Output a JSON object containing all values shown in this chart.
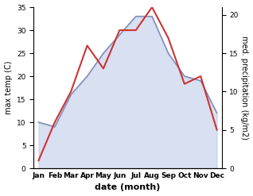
{
  "months": [
    "Jan",
    "Feb",
    "Mar",
    "Apr",
    "May",
    "Jun",
    "Jul",
    "Aug",
    "Sep",
    "Oct",
    "Nov",
    "Dec"
  ],
  "x": [
    0,
    1,
    2,
    3,
    4,
    5,
    6,
    7,
    8,
    9,
    10,
    11
  ],
  "temperature": [
    10,
    9,
    16,
    20,
    25,
    29,
    33,
    33,
    25,
    20,
    19,
    12
  ],
  "precipitation": [
    1.0,
    6.0,
    10.0,
    16.0,
    13.0,
    18.0,
    18.0,
    21.0,
    17.0,
    11.0,
    12.0,
    5.0
  ],
  "temp_fill_color": "#b8c8e8",
  "temp_line_color": "#8090b8",
  "precip_line_color": "#cc3333",
  "fill_alpha": 0.55,
  "temp_ylim": [
    0,
    35
  ],
  "precip_ylim": [
    0,
    21
  ],
  "ylabel_left": "max temp (C)",
  "ylabel_right": "med. precipitation (kg/m2)",
  "xlabel": "date (month)",
  "bg_color": "#ffffff",
  "temp_yticks": [
    0,
    5,
    10,
    15,
    20,
    25,
    30,
    35
  ],
  "precip_yticks": [
    0,
    5,
    10,
    15,
    20
  ],
  "xlim": [
    -0.3,
    11.3
  ],
  "temp_linewidth": 1.2,
  "precip_linewidth": 1.5,
  "ylabel_fontsize": 7,
  "xlabel_fontsize": 8,
  "tick_fontsize": 6.5
}
